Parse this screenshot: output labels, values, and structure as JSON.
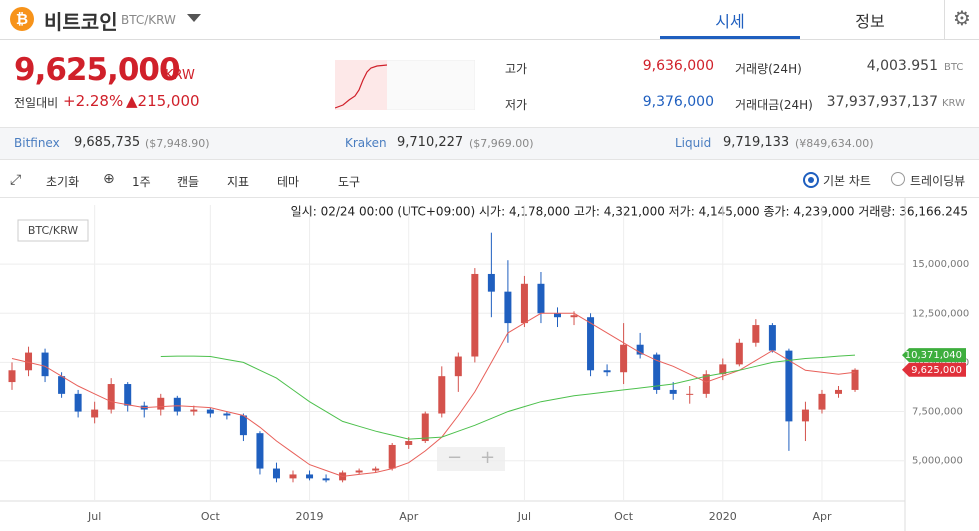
{
  "header": {
    "coin": "비트코인",
    "pair": "BTC/KRW",
    "tabs": [
      "시세",
      "정보"
    ]
  },
  "summary": {
    "price": "9,625,000",
    "unit": "KRW",
    "change_label": "전일대비",
    "change_pct": "+2.28%",
    "change_amt": "▲215,000",
    "stats": [
      {
        "label": "고가",
        "value": "9,636,000"
      },
      {
        "label": "저가",
        "value": "9,376,000"
      },
      {
        "label": "거래량(24H)",
        "value": "4,003.951",
        "unit": "BTC"
      },
      {
        "label": "거래대금(24H)",
        "value": "37,937,937,137",
        "unit": "KRW"
      }
    ]
  },
  "exchanges": [
    {
      "name": "Bitfinex",
      "price": "9,685,735",
      "alt": "($7,948.90)"
    },
    {
      "name": "Kraken",
      "price": "9,710,227",
      "alt": "($7,969.00)"
    },
    {
      "name": "Liquid",
      "price": "9,719,133",
      "alt": "(¥849,634.00)"
    }
  ],
  "toolbar": {
    "reset": "초기화",
    "period": "1주",
    "items": [
      "캔들",
      "지표",
      "테마",
      "도구"
    ],
    "options": [
      "기본 차트",
      "트레이딩뷰"
    ]
  },
  "info_line": "일시: 02/24 00:00 (UTC+09:00) 시가: 4,178,000 고가: 4,321,000 저가: 4,145,000 종가: 4,239,000 거래량: 36,166.245",
  "chart_data": {
    "type": "candlestick",
    "label": "BTC/KRW",
    "categories": [
      null,
      null,
      null,
      null,
      null,
      "Jul",
      null,
      null,
      null,
      null,
      null,
      null,
      "Oct",
      null,
      null,
      null,
      null,
      null,
      "2019",
      null,
      null,
      null,
      null,
      null,
      "Apr",
      null,
      null,
      null,
      null,
      null,
      null,
      "Jul",
      null,
      null,
      null,
      null,
      null,
      "Oct",
      null,
      null,
      null,
      null,
      null,
      "2020",
      null,
      null,
      null,
      null,
      null,
      "Apr",
      null,
      null
    ],
    "open": [
      9000000,
      9600000,
      10500000,
      9300000,
      8400000,
      7200000,
      7600000,
      8900000,
      7800000,
      7600000,
      8200000,
      7500000,
      7600000,
      7400000,
      7300000,
      6400000,
      4600000,
      4100000,
      4300000,
      4100000,
      4000000,
      4400000,
      4500000,
      4600000,
      5800000,
      6000000,
      7400000,
      9300000,
      10300000,
      14500000,
      13600000,
      12000000,
      14000000,
      12500000,
      12300000,
      12300000,
      9600000,
      9500000,
      10900000,
      10400000,
      8600000,
      8400000,
      8400000,
      9400000,
      9900000,
      11000000,
      11900000,
      10600000,
      7000000,
      7600000,
      8400000,
      8600000
    ],
    "high": [
      10000000,
      10800000,
      10700000,
      9500000,
      8600000,
      8000000,
      9200000,
      9000000,
      8000000,
      8400000,
      8300000,
      7800000,
      7700000,
      7500000,
      7400000,
      6500000,
      4900000,
      4500000,
      4500000,
      4300000,
      4500000,
      4600000,
      4700000,
      5900000,
      6200000,
      7500000,
      9800000,
      10500000,
      14800000,
      16600000,
      15200000,
      14400000,
      14600000,
      12800000,
      12600000,
      12500000,
      9900000,
      12000000,
      11500000,
      10500000,
      9000000,
      8800000,
      9600000,
      10200000,
      11200000,
      12200000,
      12000000,
      10700000,
      8000000,
      8600000,
      8800000,
      9700000
    ],
    "low": [
      8600000,
      9300000,
      9000000,
      8200000,
      7200000,
      6900000,
      7400000,
      7500000,
      7200000,
      7300000,
      7300000,
      7300000,
      7200000,
      7100000,
      6000000,
      4300000,
      3900000,
      3900000,
      4000000,
      3900000,
      3900000,
      4300000,
      4400000,
      4500000,
      5600000,
      5900000,
      7200000,
      8500000,
      10000000,
      12300000,
      11000000,
      11800000,
      12000000,
      11800000,
      11900000,
      9300000,
      9300000,
      8900000,
      10200000,
      8400000,
      8100000,
      7900000,
      8200000,
      9100000,
      9800000,
      10800000,
      10500000,
      5500000,
      6000000,
      7400000,
      8200000,
      8500000
    ],
    "close": [
      9600000,
      10500000,
      9300000,
      8400000,
      7500000,
      7600000,
      8900000,
      7800000,
      7600000,
      8200000,
      7500000,
      7600000,
      7400000,
      7300000,
      6300000,
      4600000,
      4100000,
      4300000,
      4100000,
      4000000,
      4400000,
      4500000,
      4600000,
      5800000,
      6000000,
      7400000,
      9300000,
      10300000,
      14500000,
      13600000,
      12000000,
      14000000,
      12500000,
      12300000,
      12400000,
      9600000,
      9500000,
      10900000,
      10400000,
      8600000,
      8400000,
      8400000,
      9400000,
      9900000,
      11000000,
      11900000,
      10600000,
      7000000,
      7600000,
      8400000,
      8600000,
      9625000
    ],
    "up_color": "#d4524c",
    "down_color": "#1f5fbf",
    "lines": [
      {
        "color": "#e8605a",
        "values": [
          10200000,
          10000000,
          9800000,
          9300000,
          8800000,
          8400000,
          8000000,
          7850000,
          7700000,
          7750000,
          7800000,
          7750000,
          7700000,
          7500000,
          7300000,
          6700000,
          6000000,
          5400000,
          4800000,
          4500000,
          4200000,
          4300000,
          4400000,
          4600000,
          4900000,
          5500000,
          6200000,
          7300000,
          8500000,
          10000000,
          11500000,
          12000000,
          12500000,
          12500000,
          12500000,
          12000000,
          11500000,
          11000000,
          10500000,
          10100000,
          9800000,
          9400000,
          9000000,
          9300000,
          9600000,
          10100000,
          10600000,
          10100000,
          9600000,
          9500000,
          9400000,
          9500000
        ]
      },
      {
        "color": "#4cc04c",
        "values": [
          null,
          null,
          null,
          null,
          null,
          null,
          null,
          null,
          null,
          10300000,
          10320000,
          10320000,
          10300000,
          10150000,
          10000000,
          9600000,
          9200000,
          8600000,
          8000000,
          7500000,
          7000000,
          6750000,
          6500000,
          6300000,
          6100000,
          6150000,
          6200000,
          6500000,
          6800000,
          7150000,
          7500000,
          7750000,
          8000000,
          8150000,
          8300000,
          8400000,
          8500000,
          8600000,
          8700000,
          8800000,
          8900000,
          9100000,
          9300000,
          9450000,
          9600000,
          9800000,
          10000000,
          10100000,
          10200000,
          10250000,
          10320000,
          10371040
        ]
      }
    ],
    "price_tags": [
      {
        "value": 10371040,
        "label": "10,371,040",
        "color": "#3dae3d"
      },
      {
        "value": 9625000,
        "label": "9,625,000",
        "color": "#e0303a"
      }
    ],
    "ylim": [
      3000000,
      17500000
    ],
    "yticks": [
      {
        "value": 5000000,
        "label": "5,000,000"
      },
      {
        "value": 7500000,
        "label": "7,500,000"
      },
      {
        "value": 10000000,
        "label": "10,000,000"
      },
      {
        "value": 12500000,
        "label": "12,500,000"
      },
      {
        "value": 15000000,
        "label": "15,000,000"
      }
    ],
    "grid": true
  }
}
